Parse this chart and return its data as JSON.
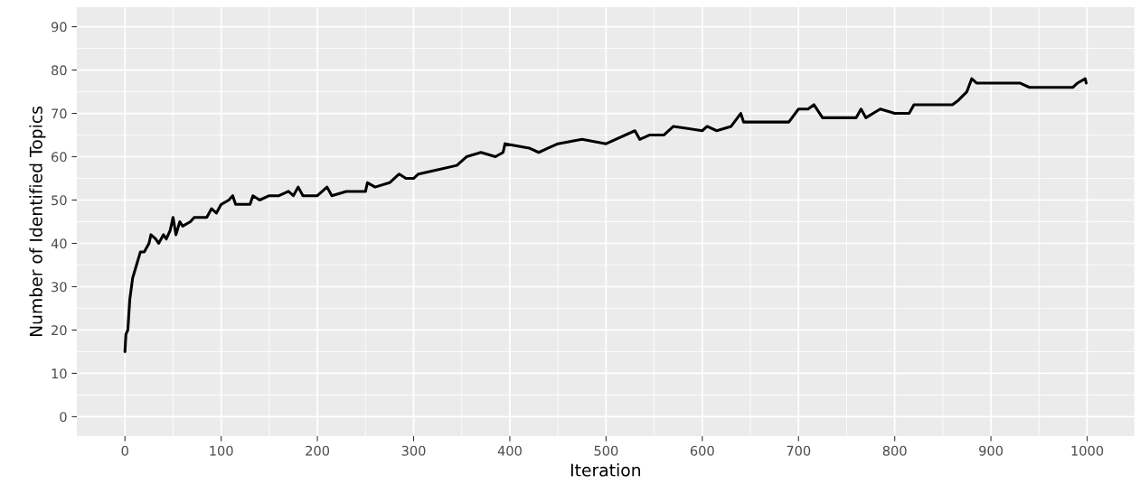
{
  "chart_data": {
    "type": "line",
    "xlabel": "Iteration",
    "ylabel": "Number of Identified Topics",
    "xlim": [
      -50,
      1049
    ],
    "ylim": [
      -4.5,
      94.5
    ],
    "xticks": [
      0,
      100,
      200,
      300,
      400,
      500,
      600,
      700,
      800,
      900,
      1000
    ],
    "yticks": [
      0,
      10,
      20,
      30,
      40,
      50,
      60,
      70,
      80,
      90
    ],
    "grid": true,
    "line_style": "solid",
    "marker": "none",
    "series": [
      {
        "color": "#000000",
        "x": [
          0,
          1,
          3,
          5,
          8,
          12,
          16,
          20,
          25,
          27,
          32,
          35,
          40,
          43,
          47,
          50,
          53,
          57,
          60,
          68,
          72,
          85,
          90,
          95,
          100,
          108,
          112,
          115,
          130,
          133,
          140,
          150,
          160,
          170,
          175,
          180,
          185,
          200,
          210,
          215,
          230,
          250,
          252,
          260,
          275,
          285,
          292,
          300,
          305,
          325,
          345,
          355,
          370,
          385,
          393,
          395,
          420,
          430,
          440,
          450,
          475,
          500,
          530,
          535,
          545,
          560,
          570,
          600,
          605,
          615,
          630,
          640,
          643,
          690,
          700,
          710,
          716,
          725,
          760,
          765,
          770,
          785,
          800,
          815,
          820,
          860,
          866,
          875,
          880,
          885,
          930,
          940,
          985,
          990,
          998,
          999
        ],
        "values": [
          15,
          19,
          20,
          27,
          32,
          35,
          38,
          38,
          40,
          42,
          41,
          40,
          42,
          41,
          43,
          46,
          42,
          45,
          44,
          45,
          46,
          46,
          48,
          47,
          49,
          50,
          51,
          49,
          49,
          51,
          50,
          51,
          51,
          52,
          51,
          53,
          51,
          51,
          53,
          51,
          52,
          52,
          54,
          53,
          54,
          56,
          55,
          55,
          56,
          57,
          58,
          60,
          61,
          60,
          61,
          63,
          62,
          61,
          62,
          63,
          64,
          63,
          66,
          64,
          65,
          65,
          67,
          66,
          67,
          66,
          67,
          70,
          68,
          68,
          71,
          71,
          72,
          69,
          69,
          71,
          69,
          71,
          70,
          70,
          72,
          72,
          73,
          75,
          78,
          77,
          77,
          76,
          76,
          77,
          78,
          77
        ]
      }
    ]
  }
}
